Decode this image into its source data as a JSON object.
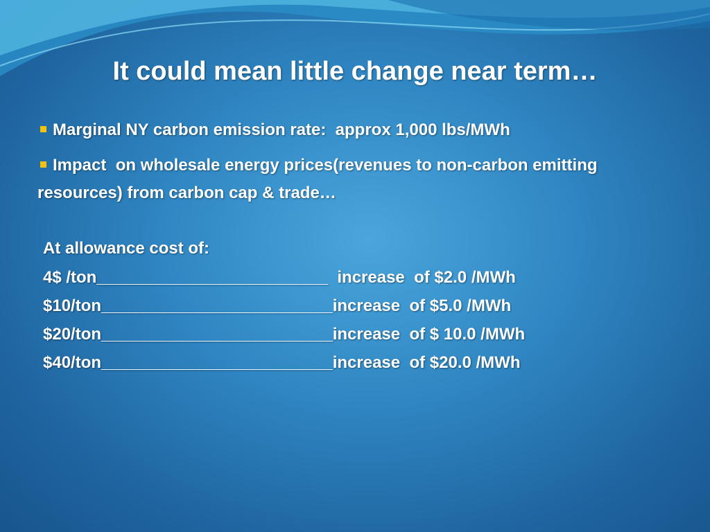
{
  "slide": {
    "title": "It could mean little change near term…",
    "bullets": [
      "Marginal NY carbon emission rate:  approx 1,000 lbs/MWh",
      "Impact  on wholesale energy prices(revenues to non-carbon emitting resources) from carbon cap & trade…"
    ],
    "table_heading": "At allowance cost of:",
    "rows": [
      "4$ /ton_________________________  increase  of $2.0 /MWh",
      "$10/ton_________________________increase  of $5.0 /MWh",
      "$20/ton_________________________increase  of $ 10.0 /MWh",
      "$40/ton_________________________increase  of $20.0 /MWh"
    ]
  }
}
